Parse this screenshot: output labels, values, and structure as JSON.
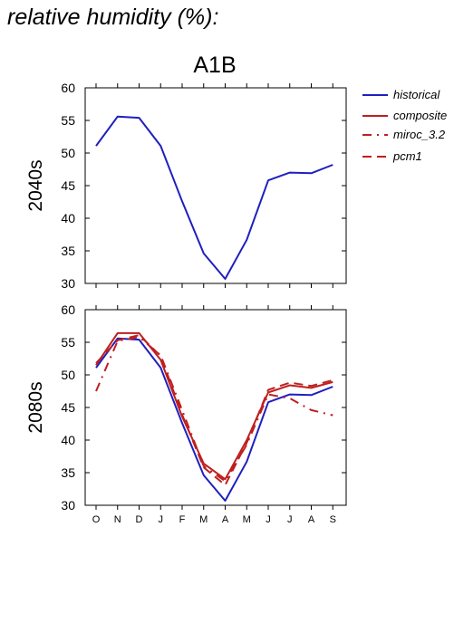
{
  "heading": "relative humidity (%):",
  "panel_title": "A1B",
  "legend": {
    "historical": "historical",
    "composite": "composite",
    "miroc": "miroc_3.2",
    "pcm1": "pcm1"
  },
  "colors": {
    "historical": "#1f1fbf",
    "future": "#bf1f1f"
  },
  "chart_data": [
    {
      "type": "line",
      "row_label": "2040s",
      "x": [
        "O",
        "N",
        "D",
        "J",
        "F",
        "M",
        "A",
        "M",
        "J",
        "J",
        "A",
        "S"
      ],
      "ylim": [
        30,
        60
      ],
      "yticks": [
        30,
        35,
        40,
        45,
        50,
        55,
        60
      ],
      "grid": false,
      "series": [
        {
          "name": "historical",
          "values": [
            51.1,
            55.6,
            55.4,
            51.1,
            42.6,
            34.6,
            30.7,
            36.7,
            45.8,
            47.0,
            46.9,
            48.2
          ]
        }
      ]
    },
    {
      "type": "line",
      "row_label": "2080s",
      "x": [
        "O",
        "N",
        "D",
        "J",
        "F",
        "M",
        "A",
        "M",
        "J",
        "J",
        "A",
        "S"
      ],
      "ylim": [
        30,
        60
      ],
      "yticks": [
        30,
        35,
        40,
        45,
        50,
        55,
        60
      ],
      "grid": false,
      "series": [
        {
          "name": "historical",
          "values": [
            51.1,
            55.6,
            55.4,
            51.1,
            42.6,
            34.6,
            30.7,
            36.7,
            45.8,
            47.0,
            46.9,
            48.2
          ]
        },
        {
          "name": "composite",
          "values": [
            51.5,
            56.4,
            56.4,
            52.3,
            43.6,
            36.4,
            34.0,
            40.0,
            47.3,
            48.4,
            48.0,
            48.9
          ]
        },
        {
          "name": "miroc_3.2",
          "values": [
            47.5,
            55.2,
            55.8,
            53.0,
            44.6,
            36.0,
            33.7,
            39.3,
            47.0,
            46.4,
            44.6,
            43.8
          ]
        },
        {
          "name": "pcm1",
          "values": [
            51.8,
            55.3,
            56.1,
            52.9,
            43.9,
            35.8,
            33.1,
            39.6,
            47.7,
            48.8,
            48.3,
            49.2
          ]
        }
      ]
    }
  ]
}
